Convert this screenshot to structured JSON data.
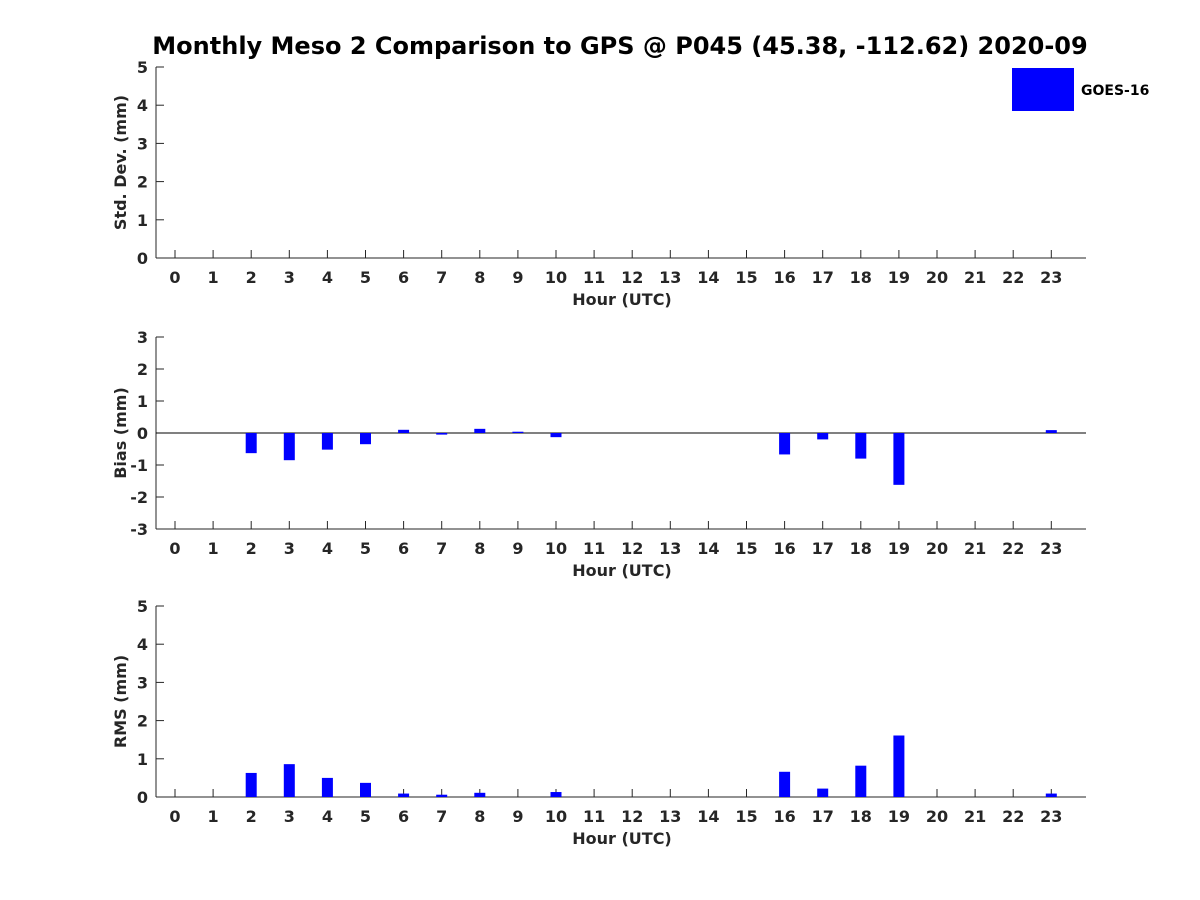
{
  "title": "Monthly Meso 2 Comparison to GPS @ P045 (45.38, -112.62) 2020-09",
  "legend": {
    "label": "GOES-16",
    "color": "#0000ff"
  },
  "chart_data": [
    {
      "type": "bar",
      "id": "std",
      "ylabel": "Std. Dev. (mm)",
      "xlabel": "Hour (UTC)",
      "ylim": [
        0,
        5
      ],
      "yticks": [
        0,
        1,
        2,
        3,
        4,
        5
      ],
      "categories": [
        "0",
        "1",
        "2",
        "3",
        "4",
        "5",
        "6",
        "7",
        "8",
        "9",
        "10",
        "11",
        "12",
        "13",
        "14",
        "15",
        "16",
        "17",
        "18",
        "19",
        "20",
        "21",
        "22",
        "23"
      ],
      "series": [
        {
          "name": "GOES-16",
          "values": [
            null,
            null,
            null,
            null,
            null,
            null,
            null,
            null,
            null,
            null,
            null,
            null,
            null,
            null,
            null,
            null,
            null,
            null,
            null,
            null,
            null,
            null,
            null,
            null
          ]
        }
      ],
      "legend_position": "top-right"
    },
    {
      "type": "bar",
      "id": "bias",
      "ylabel": "Bias (mm)",
      "xlabel": "Hour (UTC)",
      "ylim": [
        -3,
        3
      ],
      "yticks": [
        -3,
        -2,
        -1,
        0,
        1,
        2,
        3
      ],
      "categories": [
        "0",
        "1",
        "2",
        "3",
        "4",
        "5",
        "6",
        "7",
        "8",
        "9",
        "10",
        "11",
        "12",
        "13",
        "14",
        "15",
        "16",
        "17",
        "18",
        "19",
        "20",
        "21",
        "22",
        "23"
      ],
      "series": [
        {
          "name": "GOES-16",
          "values": [
            null,
            null,
            -0.63,
            -0.85,
            -0.52,
            -0.35,
            0.1,
            -0.05,
            0.13,
            0.04,
            -0.13,
            null,
            null,
            null,
            null,
            null,
            -0.67,
            -0.2,
            -0.8,
            -1.62,
            null,
            null,
            null,
            0.09
          ]
        }
      ],
      "zero_line": true
    },
    {
      "type": "bar",
      "id": "rms",
      "ylabel": "RMS (mm)",
      "xlabel": "Hour (UTC)",
      "ylim": [
        0,
        5
      ],
      "yticks": [
        0,
        1,
        2,
        3,
        4,
        5
      ],
      "categories": [
        "0",
        "1",
        "2",
        "3",
        "4",
        "5",
        "6",
        "7",
        "8",
        "9",
        "10",
        "11",
        "12",
        "13",
        "14",
        "15",
        "16",
        "17",
        "18",
        "19",
        "20",
        "21",
        "22",
        "23"
      ],
      "series": [
        {
          "name": "GOES-16",
          "values": [
            null,
            null,
            0.63,
            0.86,
            0.5,
            0.37,
            0.09,
            0.06,
            0.11,
            null,
            0.13,
            null,
            null,
            null,
            null,
            null,
            0.66,
            0.22,
            0.82,
            1.61,
            null,
            null,
            null,
            0.09
          ]
        }
      ]
    }
  ]
}
